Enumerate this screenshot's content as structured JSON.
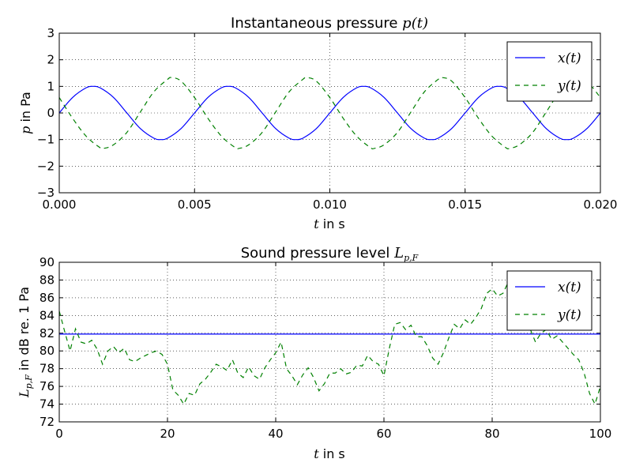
{
  "chart_data": [
    {
      "type": "line",
      "title_prefix": "Instantaneous pressure ",
      "title_math": "p(t)",
      "xlabel_math": "t",
      "xlabel_suffix": " in s",
      "ylabel_math": "p",
      "ylabel_suffix": " in Pa",
      "xlim": [
        0.0,
        0.02
      ],
      "ylim": [
        -3,
        3
      ],
      "xticks": [
        "0.000",
        "0.005",
        "0.010",
        "0.015",
        "0.020"
      ],
      "yticks": [
        "3",
        "2",
        "1",
        "0",
        "−1",
        "−2",
        "−3"
      ],
      "grid": true,
      "legend_position": "top-right",
      "series": [
        {
          "name": "x(t)",
          "style": "solid",
          "color": "#0000ff",
          "x": [
            0.0,
            0.0005,
            0.001,
            0.00125,
            0.0015,
            0.002,
            0.0025,
            0.003,
            0.0035,
            0.00375,
            0.004,
            0.0045,
            0.005,
            0.0055,
            0.006,
            0.00625,
            0.0065,
            0.007,
            0.0075,
            0.008,
            0.0085,
            0.00875,
            0.009,
            0.0095,
            0.01,
            0.0105,
            0.011,
            0.01125,
            0.0115,
            0.012,
            0.0125,
            0.013,
            0.0135,
            0.01375,
            0.014,
            0.0145,
            0.015,
            0.0155,
            0.016,
            0.01625,
            0.0165,
            0.017,
            0.0175,
            0.018,
            0.0185,
            0.01875,
            0.019,
            0.0195,
            0.02
          ],
          "y": [
            0.0,
            0.59,
            0.95,
            1.0,
            0.95,
            0.59,
            0.0,
            -0.59,
            -0.95,
            -1.0,
            -0.95,
            -0.59,
            0.0,
            0.59,
            0.95,
            1.0,
            0.95,
            0.59,
            0.0,
            -0.59,
            -0.95,
            -1.0,
            -0.95,
            -0.59,
            0.0,
            0.59,
            0.95,
            1.0,
            0.95,
            0.59,
            0.0,
            -0.59,
            -0.95,
            -1.0,
            -0.95,
            -0.59,
            0.0,
            0.59,
            0.95,
            1.0,
            0.95,
            0.59,
            0.0,
            -0.59,
            -0.95,
            -1.0,
            -0.95,
            -0.59,
            0.0
          ]
        },
        {
          "name": "y(t)",
          "style": "dashed",
          "color": "#008000",
          "x": [
            0.0,
            0.0005,
            0.001,
            0.0015,
            0.00165,
            0.002,
            0.0025,
            0.003,
            0.0035,
            0.004,
            0.00415,
            0.0045,
            0.005,
            0.0055,
            0.006,
            0.0065,
            0.00665,
            0.007,
            0.0075,
            0.008,
            0.0085,
            0.009,
            0.00915,
            0.0095,
            0.01,
            0.0105,
            0.011,
            0.0115,
            0.01165,
            0.012,
            0.0125,
            0.013,
            0.0135,
            0.014,
            0.01415,
            0.0145,
            0.015,
            0.0155,
            0.016,
            0.0165,
            0.01665,
            0.017,
            0.0175,
            0.018,
            0.0185,
            0.019,
            0.01915,
            0.0195,
            0.02
          ],
          "y": [
            0.58,
            -0.21,
            -0.88,
            -1.3,
            -1.33,
            -1.2,
            -0.73,
            0.04,
            0.8,
            1.26,
            1.33,
            1.2,
            0.58,
            -0.21,
            -0.88,
            -1.3,
            -1.33,
            -1.2,
            -0.73,
            0.04,
            0.8,
            1.26,
            1.33,
            1.2,
            0.58,
            -0.21,
            -0.88,
            -1.3,
            -1.33,
            -1.2,
            -0.73,
            0.04,
            0.8,
            1.26,
            1.33,
            1.2,
            0.58,
            -0.21,
            -0.88,
            -1.3,
            -1.33,
            -1.2,
            -0.73,
            0.04,
            0.8,
            1.26,
            1.33,
            1.2,
            0.58
          ]
        }
      ]
    },
    {
      "type": "line",
      "title_prefix": "Sound pressure level ",
      "title_math": "L",
      "title_math_sub": "p,F",
      "xlabel_math": "t",
      "xlabel_suffix": " in s",
      "ylabel_math": "L",
      "ylabel_math_sub": "p,F",
      "ylabel_suffix": " in dB re. 1 Pa",
      "xlim": [
        0,
        100
      ],
      "ylim": [
        72,
        90
      ],
      "xticks": [
        "0",
        "20",
        "40",
        "60",
        "80",
        "100"
      ],
      "yticks": [
        "90",
        "88",
        "86",
        "84",
        "82",
        "80",
        "78",
        "76",
        "74",
        "72"
      ],
      "grid": true,
      "legend_position": "top-right",
      "series": [
        {
          "name": "x(t)",
          "style": "solid",
          "color": "#0000ff",
          "x": [
            0,
            100
          ],
          "y": [
            81.9,
            81.9
          ]
        },
        {
          "name": "y(t)",
          "style": "dashed",
          "color": "#008000",
          "x": [
            0,
            1,
            2,
            3,
            4,
            5,
            6,
            7,
            8,
            9,
            10,
            11,
            12,
            13,
            14,
            15,
            16,
            17,
            18,
            19,
            20,
            21,
            22,
            23,
            24,
            25,
            26,
            27,
            28,
            29,
            30,
            31,
            32,
            33,
            34,
            35,
            36,
            37,
            38,
            39,
            40,
            41,
            42,
            43,
            44,
            45,
            46,
            47,
            48,
            49,
            50,
            51,
            52,
            53,
            54,
            55,
            56,
            57,
            58,
            59,
            60,
            61,
            62,
            63,
            64,
            65,
            66,
            67,
            68,
            69,
            70,
            71,
            72,
            73,
            74,
            75,
            76,
            77,
            78,
            79,
            80,
            81,
            82,
            83,
            84,
            85,
            86,
            87,
            88,
            89,
            90,
            91,
            92,
            93,
            94,
            95,
            96,
            97,
            98,
            99,
            100
          ],
          "y": [
            84.5,
            82.2,
            80.0,
            82.5,
            81.0,
            80.8,
            81.2,
            80.2,
            78.5,
            80.0,
            80.5,
            79.8,
            80.3,
            79.0,
            78.8,
            79.2,
            79.5,
            79.8,
            80.0,
            79.6,
            78.5,
            75.6,
            75.0,
            74.0,
            75.2,
            75.0,
            76.3,
            76.8,
            77.6,
            78.5,
            78.2,
            77.8,
            79.0,
            77.5,
            77.0,
            78.2,
            77.2,
            76.8,
            78.1,
            79.0,
            79.8,
            81.0,
            78.0,
            77.2,
            76.2,
            77.3,
            78.1,
            77.0,
            75.5,
            76.3,
            77.5,
            77.5,
            78.0,
            77.4,
            77.6,
            78.4,
            78.3,
            79.5,
            78.8,
            78.5,
            77.2,
            80.3,
            83.0,
            83.2,
            82.4,
            82.9,
            81.6,
            81.6,
            80.6,
            79.2,
            78.5,
            79.8,
            81.5,
            83.0,
            82.5,
            83.5,
            83.0,
            83.8,
            84.8,
            86.5,
            87.0,
            86.2,
            86.5,
            87.8,
            86.8,
            85.5,
            84.2,
            82.5,
            81.0,
            82.0,
            82.4,
            81.3,
            81.7,
            81.0,
            80.3,
            79.6,
            79.0,
            77.5,
            75.2,
            74.0,
            76.0
          ]
        }
      ]
    }
  ]
}
